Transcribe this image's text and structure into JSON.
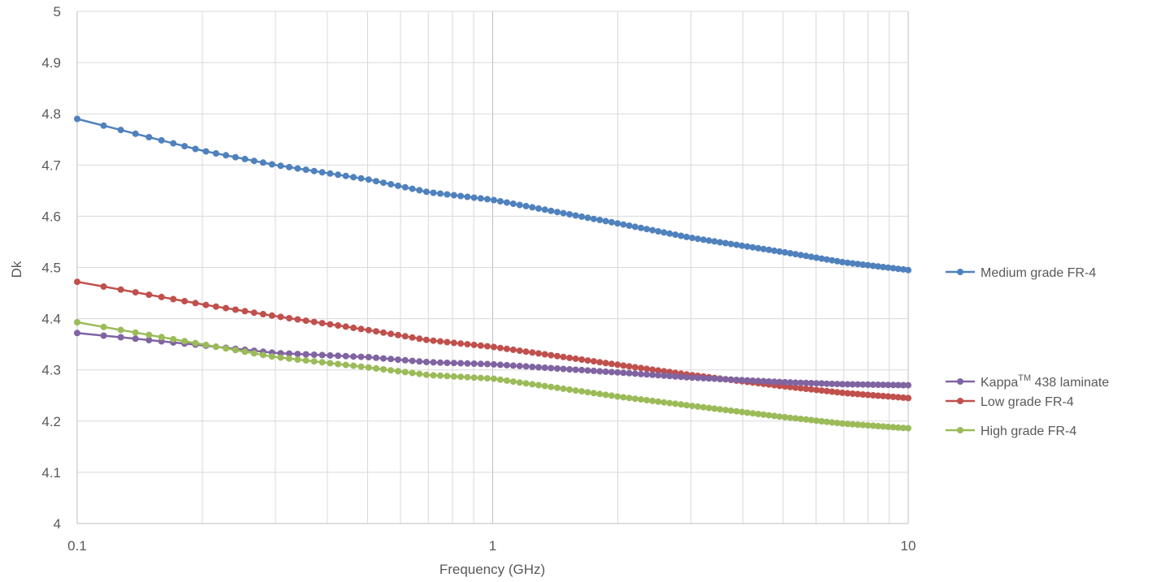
{
  "chart_data": {
    "type": "line",
    "title": "",
    "xlabel": "Frequency (GHz)",
    "ylabel": "Dk",
    "x_scale": "log",
    "xlim": [
      0.1,
      10
    ],
    "ylim": [
      4,
      5
    ],
    "x_ticks": [
      "0.1",
      "1",
      "10"
    ],
    "y_ticks": [
      "4",
      "4.1",
      "4.2",
      "4.3",
      "4.4",
      "4.5",
      "4.6",
      "4.7",
      "4.8",
      "4.9",
      "5"
    ],
    "grid": true,
    "legend_position": "right",
    "legend": [
      {
        "label": "Medium grade FR-4",
        "series": 0
      },
      {
        "label_main": "Kappa",
        "label_sup": "TM",
        "label_rest": " 438 laminate",
        "series": 1
      },
      {
        "label": "Low grade FR-4",
        "series": 2
      },
      {
        "label": "High grade FR-4",
        "series": 3
      }
    ],
    "series": [
      {
        "name": "Medium grade FR-4",
        "color": "#4f81bd",
        "points": [
          [
            0.1,
            4.79
          ],
          [
            0.2,
            4.728
          ],
          [
            0.3,
            4.7
          ],
          [
            0.5,
            4.672
          ],
          [
            0.7,
            4.647
          ],
          [
            1,
            4.632
          ],
          [
            2,
            4.586
          ],
          [
            3,
            4.558
          ],
          [
            5,
            4.53
          ],
          [
            7,
            4.51
          ],
          [
            10,
            4.495
          ]
        ]
      },
      {
        "name": "Kappa™ 438 laminate",
        "color": "#8064a2",
        "points": [
          [
            0.1,
            4.372
          ],
          [
            0.2,
            4.348
          ],
          [
            0.3,
            4.333
          ],
          [
            0.5,
            4.325
          ],
          [
            0.7,
            4.315
          ],
          [
            1,
            4.311
          ],
          [
            2,
            4.295
          ],
          [
            3,
            4.285
          ],
          [
            5,
            4.276
          ],
          [
            7,
            4.272
          ],
          [
            10,
            4.27
          ]
        ]
      },
      {
        "name": "Low grade FR-4",
        "color": "#c0504d",
        "points": [
          [
            0.1,
            4.472
          ],
          [
            0.2,
            4.428
          ],
          [
            0.3,
            4.405
          ],
          [
            0.5,
            4.378
          ],
          [
            0.7,
            4.358
          ],
          [
            1,
            4.345
          ],
          [
            2,
            4.31
          ],
          [
            3,
            4.29
          ],
          [
            5,
            4.268
          ],
          [
            7,
            4.255
          ],
          [
            10,
            4.245
          ]
        ]
      },
      {
        "name": "High grade FR-4",
        "color": "#9bbb59",
        "points": [
          [
            0.1,
            4.393
          ],
          [
            0.2,
            4.35
          ],
          [
            0.3,
            4.325
          ],
          [
            0.5,
            4.305
          ],
          [
            0.7,
            4.29
          ],
          [
            1,
            4.283
          ],
          [
            2,
            4.248
          ],
          [
            3,
            4.23
          ],
          [
            5,
            4.208
          ],
          [
            7,
            4.195
          ],
          [
            10,
            4.186
          ]
        ]
      }
    ]
  }
}
